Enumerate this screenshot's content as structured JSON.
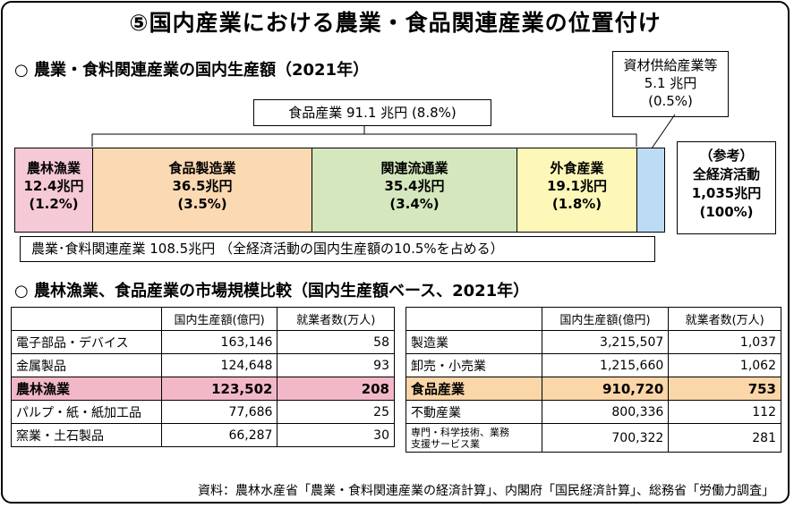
{
  "title": "⑤国内産業における農業・食品関連産業の位置付け",
  "section1": {
    "heading": "○ 農業・食料関連産業の国内生産額（2021年）",
    "food_industry_total": "食品産業 91.1 兆円 (8.8%)",
    "supply_industry": {
      "name": "資材供給産業等",
      "value": "5.1 兆円",
      "pct": "(0.5%)"
    },
    "reference": {
      "label": "（参考）",
      "name": "全経済活動",
      "value": "1,035兆円",
      "pct": "(100%)"
    },
    "segments": [
      {
        "name": "農林漁業",
        "value": "12.4兆円",
        "pct": "(1.2%)",
        "color": "#f6c9d6"
      },
      {
        "name": "食品製造業",
        "value": "36.5兆円",
        "pct": "(3.5%)",
        "color": "#fbd9b3"
      },
      {
        "name": "関連流通業",
        "value": "35.4兆円",
        "pct": "(3.4%)",
        "color": "#d4e7bd"
      },
      {
        "name": "外食産業",
        "value": "19.1兆円",
        "pct": "(1.8%)",
        "color": "#fdf7b8"
      }
    ],
    "supply_color": "#bcdcf4",
    "summary": "農業･食料関連産業 108.5兆円 （全経済活動の国内生産額の10.5%を占める）"
  },
  "section2": {
    "heading": "○ 農林漁業、食品産業の市場規模比較（国内生産額ベース、2021年）",
    "columns": [
      "",
      "国内生産額(億円)",
      "就業者数(万人)"
    ],
    "left_rows": [
      {
        "name": "電子部品・デバイス",
        "value": "163,146",
        "workers": "58",
        "hl": ""
      },
      {
        "name": "金属製品",
        "value": "124,648",
        "workers": "93",
        "hl": ""
      },
      {
        "name": "農林漁業",
        "value": "123,502",
        "workers": "208",
        "hl": "pink"
      },
      {
        "name": "パルプ・紙・紙加工品",
        "value": "77,686",
        "workers": "25",
        "hl": ""
      },
      {
        "name": "窯業・土石製品",
        "value": "66,287",
        "workers": "30",
        "hl": ""
      }
    ],
    "right_rows": [
      {
        "name": "製造業",
        "value": "3,215,507",
        "workers": "1,037",
        "hl": ""
      },
      {
        "name": "卸売・小売業",
        "value": "1,215,660",
        "workers": "1,062",
        "hl": ""
      },
      {
        "name": "食品産業",
        "value": "910,720",
        "workers": "753",
        "hl": "orange"
      },
      {
        "name": "不動産業",
        "value": "800,336",
        "workers": "112",
        "hl": ""
      },
      {
        "name": "専門・科学技術、業務支援サービス業",
        "name_l1": "専門・科学技術、業務",
        "name_l2": "支援サービス業",
        "value": "700,322",
        "workers": "281",
        "hl": ""
      }
    ]
  },
  "source": "資料：農林水産省「農業・食料関連産業の経済計算」、内閣府「国民経済計算」、総務省「労働力調査」"
}
